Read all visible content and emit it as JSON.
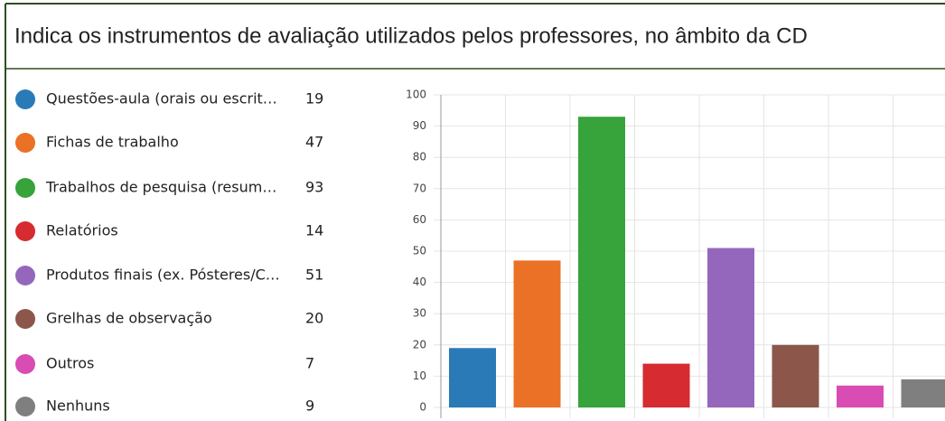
{
  "chart_data": {
    "type": "bar",
    "title": "Indica os instrumentos de avaliação utilizados pelos professores, no âmbito da CD",
    "categories": [
      "Questões-aula (orais ou escrit…",
      "Fichas de trabalho",
      "Trabalhos de pesquisa (resum…",
      "Relatórios",
      "Produtos finais (ex. Pósteres/C…",
      "Grelhas de observação",
      "Outros",
      "Nenhuns"
    ],
    "values": [
      19,
      47,
      93,
      14,
      51,
      20,
      7,
      9
    ],
    "colors": [
      "#2a7ab8",
      "#eb7126",
      "#37a33b",
      "#d62b30",
      "#9467bd",
      "#8c564b",
      "#d94cb3",
      "#7f7f7f"
    ],
    "ylim": [
      0,
      100
    ],
    "yticks": [
      0,
      10,
      20,
      30,
      40,
      50,
      60,
      70,
      80,
      90,
      100
    ],
    "grid": true
  }
}
